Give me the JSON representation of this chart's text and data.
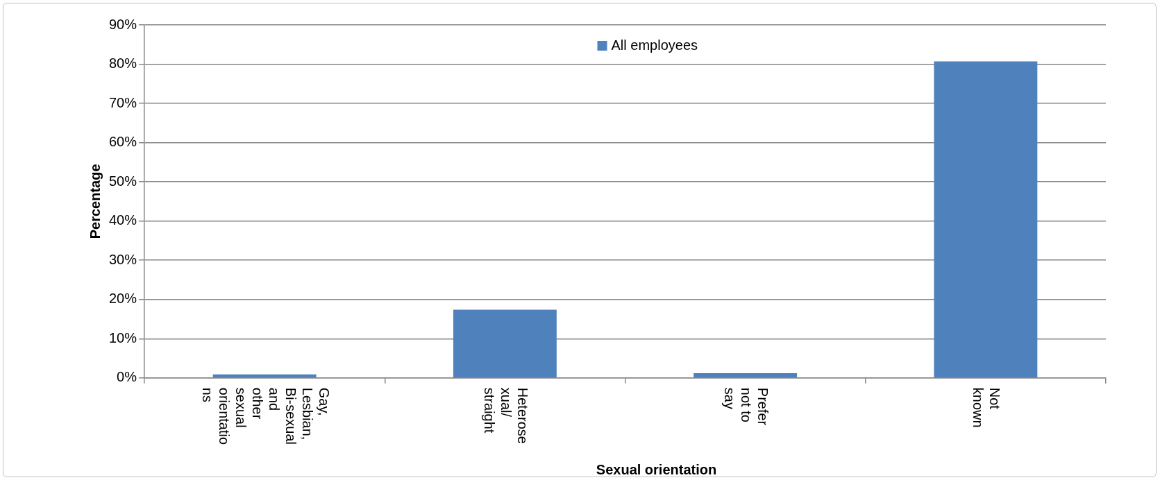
{
  "chart_data": {
    "type": "bar",
    "xlabel": "Sexual orientation",
    "ylabel": "Percentage",
    "categories": [
      "Gay, Lesbian, Bi-sexual and other sexual orientations",
      "Heterosexual/ straight",
      "Prefer not to say",
      "Not known"
    ],
    "series": [
      {
        "name": "All employees",
        "color": "#4f81bd",
        "values": [
          0.9,
          17.4,
          1.2,
          80.7
        ]
      }
    ],
    "ylim": [
      0,
      90
    ],
    "yticks": [
      {
        "value": 0,
        "label": "0%"
      },
      {
        "value": 10,
        "label": "10%"
      },
      {
        "value": 20,
        "label": "20%"
      },
      {
        "value": 30,
        "label": "30%"
      },
      {
        "value": 40,
        "label": "40%"
      },
      {
        "value": 50,
        "label": "50%"
      },
      {
        "value": 60,
        "label": "60%"
      },
      {
        "value": 70,
        "label": "70%"
      },
      {
        "value": 80,
        "label": "80%"
      },
      {
        "value": 90,
        "label": "90%"
      }
    ],
    "grid": "y",
    "legend": "top"
  }
}
